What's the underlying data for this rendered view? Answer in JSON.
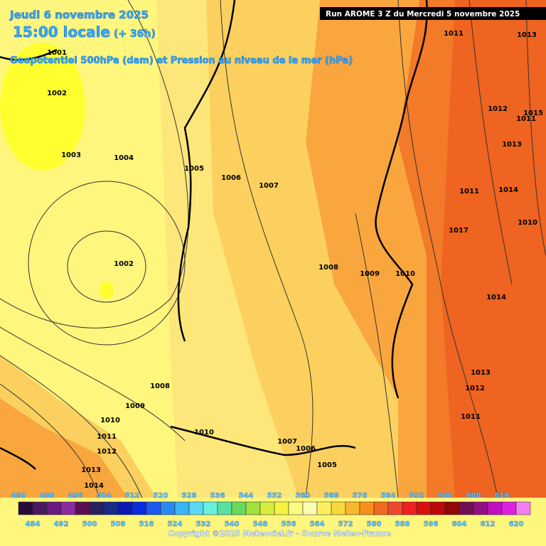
{
  "header": {
    "date": "Jeudi 6 novembre 2025",
    "time": "15:00 locale",
    "lead": "(+ 36h)",
    "subtitle": "Geopotentiel 500hPa (dam) et Pression au niveau de la mer (hPa)",
    "run": "Run AROME 3 Z du Mercredi 5 novembre 2025"
  },
  "isobars": [
    "1001",
    "1002",
    "1003",
    "1004",
    "1005",
    "1006",
    "1007",
    "1002",
    "1008",
    "1009",
    "1010",
    "1011",
    "1013",
    "1012",
    "1015",
    "1011",
    "1013",
    "1011",
    "1014",
    "1017",
    "1010",
    "1014",
    "1013",
    "1012",
    "1011",
    "1008",
    "1009",
    "1010",
    "1011",
    "1012",
    "1013",
    "1014",
    "1010",
    "1007",
    "1006",
    "1005"
  ],
  "colorbar": {
    "top_labels": [
      480,
      488,
      496,
      504,
      512,
      520,
      528,
      536,
      544,
      552,
      560,
      568,
      576,
      584,
      592,
      600,
      608,
      616
    ],
    "bottom_labels": [
      484,
      492,
      500,
      508,
      516,
      524,
      532,
      540,
      548,
      556,
      564,
      572,
      580,
      588,
      596,
      604,
      612,
      620
    ],
    "colors": [
      "#2a0a3a",
      "#4a1a5e",
      "#6a1a80",
      "#8a2aa0",
      "#5a1050",
      "#2a2060",
      "#1a2a88",
      "#0a1ab0",
      "#0a2ae0",
      "#1a5af0",
      "#2a8af0",
      "#3ab4f4",
      "#5ad8f4",
      "#6af0e0",
      "#5ae0a0",
      "#6ad860",
      "#a0e040",
      "#d8ec40",
      "#f4f440",
      "#fafa80",
      "#fcfcb0",
      "#fcf060",
      "#f8d840",
      "#f8b830",
      "#f89020",
      "#f06a20",
      "#f04830",
      "#f02020",
      "#d81010",
      "#b80a0a",
      "#900808",
      "#701050",
      "#901080",
      "#c010c0",
      "#e020e0",
      "#f080f0"
    ]
  },
  "footer": {
    "copyright": "Copyright ©2025 Meteociel.fr - Source Meteo-France"
  }
}
